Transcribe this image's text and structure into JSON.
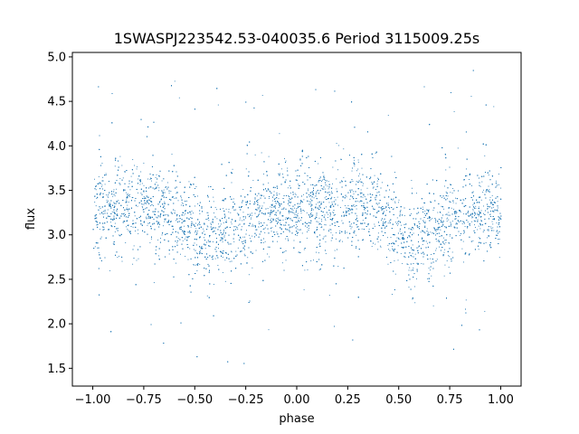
{
  "chart_data": {
    "type": "scatter",
    "title": "1SWASPJ223542.53-040035.6 Period 3115009.25s",
    "xlabel": "phase",
    "ylabel": "flux",
    "xlim": [
      -1.1,
      1.1
    ],
    "ylim": [
      1.3,
      5.05
    ],
    "x_ticks": [
      -1.0,
      -0.75,
      -0.5,
      -0.25,
      0.0,
      0.25,
      0.5,
      0.75,
      1.0
    ],
    "x_tick_labels": [
      "−1.00",
      "−0.75",
      "−0.50",
      "−0.25",
      "0.00",
      "0.25",
      "0.50",
      "0.75",
      "1.00"
    ],
    "y_ticks": [
      1.5,
      2.0,
      2.5,
      3.0,
      3.5,
      4.0,
      4.5,
      5.0
    ],
    "y_tick_labels": [
      "1.5",
      "2.0",
      "2.5",
      "3.0",
      "3.5",
      "4.0",
      "4.5",
      "5.0"
    ],
    "grid": false,
    "point_color": "#1f77b4",
    "phase_range": [
      -1.0,
      1.0
    ],
    "mean_flux_profile": {
      "phase": [
        0.0,
        0.1,
        0.2,
        0.3,
        0.4,
        0.5,
        0.55,
        0.6,
        0.7,
        0.8,
        0.9,
        1.0
      ],
      "flux": [
        3.25,
        3.3,
        3.3,
        3.35,
        3.25,
        3.05,
        2.95,
        3.0,
        3.1,
        3.25,
        3.3,
        3.25
      ]
    },
    "flux_range": [
      1.45,
      4.9
    ]
  }
}
